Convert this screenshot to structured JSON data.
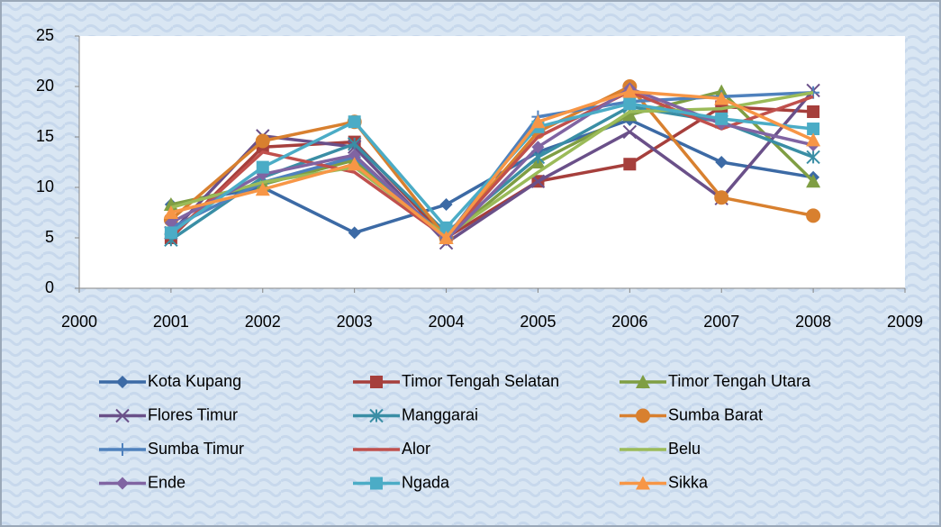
{
  "chart_data": {
    "type": "line",
    "x": [
      2001,
      2002,
      2003,
      2004,
      2005,
      2006,
      2007,
      2008
    ],
    "xlim": [
      2000,
      2009
    ],
    "xticks": [
      2000,
      2001,
      2002,
      2003,
      2004,
      2005,
      2006,
      2007,
      2008,
      2009
    ],
    "ylim": [
      0,
      25
    ],
    "yticks": [
      0,
      5,
      10,
      15,
      20,
      25
    ],
    "legend": "bottom",
    "series": [
      {
        "name": "Kota Kupang",
        "color": "#3c6aa5",
        "marker": "diamond",
        "values": [
          8.3,
          10,
          5.5,
          8.3,
          13.5,
          16.7,
          12.5,
          11
        ]
      },
      {
        "name": "Timor Tengah Selatan",
        "color": "#a63f3c",
        "marker": "square",
        "values": [
          5,
          14,
          14.5,
          5,
          10.6,
          12.3,
          18,
          17.5
        ]
      },
      {
        "name": "Timor Tengah Utara",
        "color": "#7f9e43",
        "marker": "triangle",
        "values": [
          8.3,
          10.3,
          12.7,
          5,
          12.5,
          17.2,
          19.5,
          10.6
        ]
      },
      {
        "name": "Flores Timur",
        "color": "#6a5089",
        "marker": "x",
        "values": [
          5.5,
          15.1,
          14,
          4.5,
          10.6,
          15.5,
          8.9,
          19.6
        ]
      },
      {
        "name": "Manggarai",
        "color": "#3a8ea5",
        "marker": "star",
        "values": [
          4.8,
          11,
          14.3,
          5.5,
          13,
          18,
          16.5,
          13
        ]
      },
      {
        "name": "Sumba Barat",
        "color": "#d8802f",
        "marker": "circle",
        "values": [
          6.8,
          14.6,
          16.5,
          5,
          15.5,
          20,
          9,
          7.2
        ]
      },
      {
        "name": "Sumba Timur",
        "color": "#4f81bd",
        "marker": "plus",
        "values": [
          6,
          10.5,
          13,
          5,
          17,
          18.5,
          19,
          19.4
        ]
      },
      {
        "name": "Alor",
        "color": "#c0504d",
        "marker": "none",
        "values": [
          5.2,
          13.5,
          11.5,
          5,
          15,
          19.5,
          15.8,
          19
        ]
      },
      {
        "name": "Belu",
        "color": "#9bbb59",
        "marker": "none",
        "values": [
          8,
          10.5,
          12,
          5.2,
          11.5,
          17.5,
          17.8,
          19.4
        ]
      },
      {
        "name": "Ende",
        "color": "#8064a2",
        "marker": "diamond",
        "values": [
          6.5,
          11.3,
          13.2,
          4.8,
          14,
          19.8,
          16.3,
          14.2
        ]
      },
      {
        "name": "Ngada",
        "color": "#4bacc6",
        "marker": "square",
        "values": [
          5.5,
          12,
          16.5,
          6,
          16,
          18.3,
          16.8,
          15.8
        ]
      },
      {
        "name": "Sikka",
        "color": "#f79646",
        "marker": "triangle",
        "values": [
          7.5,
          9.8,
          12.3,
          5,
          16.5,
          19.5,
          18.8,
          14.7
        ]
      }
    ]
  }
}
